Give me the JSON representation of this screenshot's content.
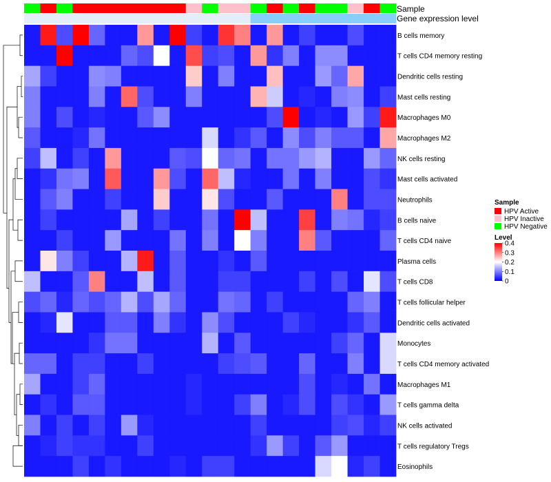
{
  "chart_data": {
    "type": "heatmap",
    "title": "",
    "annotation_tracks": [
      {
        "name": "Sample",
        "values": [
          "HPV Negative",
          "HPV Active",
          "HPV Negative",
          "HPV Active",
          "HPV Active",
          "HPV Active",
          "HPV Active",
          "HPV Active",
          "HPV Active",
          "HPV Active",
          "HPV Inactive",
          "HPV Negative",
          "HPV Inactive",
          "HPV Inactive",
          "HPV Negative",
          "HPV Active",
          "HPV Negative",
          "HPV Active",
          "HPV Negative",
          "HPV Negative",
          "HPV Inactive",
          "HPV Active",
          "HPV Negative"
        ]
      },
      {
        "name": "Gene expression level",
        "values": [
          "low",
          "low",
          "low",
          "low",
          "low",
          "low",
          "low",
          "low",
          "low",
          "low",
          "low",
          "low",
          "low",
          "low",
          "high",
          "high",
          "high",
          "high",
          "high",
          "high",
          "high",
          "high",
          "high"
        ]
      }
    ],
    "rows": [
      "B cells memory",
      "T cells CD4 memory resting",
      "Dendritic cells resting",
      "Mast cells resting",
      "Macrophages M0",
      "Macrophages M2",
      "NK cells resting",
      "Mast cells activated",
      "Neutrophils",
      "B cells naive",
      "T cells CD4 naive",
      "Plasma cells",
      "T cells CD8",
      "T cells follicular helper",
      "Dendritic cells activated",
      "Monocytes",
      "T cells CD4 memory activated",
      "Macrophages M1",
      "T cells gamma delta",
      "NK cells activated",
      "T cells regulatory  Tregs",
      "Eosinophils"
    ],
    "values": [
      [
        0.02,
        0.38,
        0.06,
        0.4,
        0.08,
        0.02,
        0.02,
        0.28,
        0.02,
        0.4,
        0.05,
        0.02,
        0.36,
        0.3,
        0.02,
        0.28,
        0.02,
        0.05,
        0.02,
        0.02,
        0.06,
        0.02,
        0.02
      ],
      [
        0.02,
        0.02,
        0.4,
        0.02,
        0.02,
        0.02,
        0.08,
        0.06,
        0.2,
        0.02,
        0.34,
        0.05,
        0.06,
        0.02,
        0.28,
        0.04,
        0.1,
        0.02,
        0.11,
        0.11,
        0.02,
        0.02,
        0.02
      ],
      [
        0.13,
        0.05,
        0.02,
        0.02,
        0.11,
        0.1,
        0.02,
        0.02,
        0.02,
        0.02,
        0.24,
        0.02,
        0.1,
        0.02,
        0.02,
        0.25,
        0.02,
        0.02,
        0.12,
        0.08,
        0.27,
        0.02,
        0.02
      ],
      [
        0.1,
        0.02,
        0.02,
        0.02,
        0.1,
        0.02,
        0.32,
        0.06,
        0.02,
        0.02,
        0.1,
        0.02,
        0.02,
        0.02,
        0.26,
        0.16,
        0.02,
        0.03,
        0.02,
        0.1,
        0.11,
        0.02,
        0.05
      ],
      [
        0.1,
        0.02,
        0.06,
        0.02,
        0.03,
        0.02,
        0.02,
        0.07,
        0.11,
        0.02,
        0.02,
        0.02,
        0.02,
        0.02,
        0.02,
        0.06,
        0.4,
        0.02,
        0.03,
        0.02,
        0.12,
        0.05,
        0.38
      ],
      [
        0.07,
        0.02,
        0.02,
        0.03,
        0.09,
        0.02,
        0.02,
        0.02,
        0.02,
        0.02,
        0.02,
        0.17,
        0.02,
        0.04,
        0.07,
        0.02,
        0.11,
        0.06,
        0.1,
        0.07,
        0.07,
        0.02,
        0.27
      ],
      [
        0.05,
        0.15,
        0.02,
        0.05,
        0.02,
        0.28,
        0.02,
        0.02,
        0.02,
        0.07,
        0.06,
        0.2,
        0.08,
        0.09,
        0.02,
        0.09,
        0.09,
        0.12,
        0.14,
        0.02,
        0.02,
        0.12,
        0.08
      ],
      [
        0.02,
        0.04,
        0.09,
        0.1,
        0.02,
        0.33,
        0.02,
        0.02,
        0.28,
        0.06,
        0.02,
        0.32,
        0.15,
        0.03,
        0.02,
        0.02,
        0.09,
        0.02,
        0.1,
        0.02,
        0.02,
        0.06,
        0.04
      ],
      [
        0.02,
        0.07,
        0.1,
        0.02,
        0.02,
        0.05,
        0.02,
        0.02,
        0.24,
        0.02,
        0.02,
        0.22,
        0.06,
        0.02,
        0.02,
        0.07,
        0.02,
        0.02,
        0.02,
        0.3,
        0.02,
        0.06,
        0.06
      ],
      [
        0.02,
        0.05,
        0.02,
        0.02,
        0.02,
        0.02,
        0.13,
        0.02,
        0.05,
        0.02,
        0.02,
        0.09,
        0.02,
        0.4,
        0.15,
        0.02,
        0.02,
        0.35,
        0.02,
        0.1,
        0.09,
        0.03,
        0.05
      ],
      [
        0.02,
        0.02,
        0.05,
        0.02,
        0.02,
        0.12,
        0.02,
        0.02,
        0.02,
        0.09,
        0.02,
        0.1,
        0.02,
        0.2,
        0.1,
        0.02,
        0.02,
        0.3,
        0.07,
        0.02,
        0.02,
        0.02,
        0.08
      ],
      [
        0.02,
        0.22,
        0.1,
        0.05,
        0.02,
        0.02,
        0.14,
        0.38,
        0.02,
        0.07,
        0.02,
        0.02,
        0.04,
        0.02,
        0.07,
        0.02,
        0.02,
        0.02,
        0.02,
        0.02,
        0.02,
        0.02,
        0.02
      ],
      [
        0.15,
        0.02,
        0.02,
        0.07,
        0.3,
        0.02,
        0.02,
        0.15,
        0.02,
        0.07,
        0.02,
        0.02,
        0.05,
        0.05,
        0.02,
        0.02,
        0.02,
        0.05,
        0.02,
        0.06,
        0.02,
        0.18,
        0.06
      ],
      [
        0.06,
        0.08,
        0.03,
        0.08,
        0.06,
        0.08,
        0.14,
        0.06,
        0.13,
        0.08,
        0.02,
        0.02,
        0.09,
        0.08,
        0.02,
        0.05,
        0.02,
        0.02,
        0.02,
        0.02,
        0.08,
        0.1,
        0.02
      ],
      [
        0.02,
        0.03,
        0.18,
        0.02,
        0.02,
        0.07,
        0.07,
        0.02,
        0.1,
        0.04,
        0.02,
        0.11,
        0.06,
        0.02,
        0.02,
        0.02,
        0.05,
        0.03,
        0.02,
        0.02,
        0.04,
        0.07,
        0.02
      ],
      [
        0.02,
        0.02,
        0.02,
        0.02,
        0.04,
        0.09,
        0.09,
        0.02,
        0.02,
        0.02,
        0.02,
        0.14,
        0.02,
        0.07,
        0.02,
        0.02,
        0.02,
        0.02,
        0.02,
        0.05,
        0.08,
        0.02,
        0.17
      ],
      [
        0.08,
        0.08,
        0.02,
        0.05,
        0.05,
        0.02,
        0.02,
        0.05,
        0.02,
        0.02,
        0.02,
        0.02,
        0.05,
        0.06,
        0.07,
        0.02,
        0.02,
        0.08,
        0.02,
        0.02,
        0.1,
        0.02,
        0.17
      ],
      [
        0.13,
        0.02,
        0.02,
        0.05,
        0.08,
        0.02,
        0.02,
        0.02,
        0.02,
        0.02,
        0.03,
        0.02,
        0.02,
        0.02,
        0.02,
        0.02,
        0.02,
        0.06,
        0.02,
        0.03,
        0.02,
        0.09,
        0.02
      ],
      [
        0.02,
        0.04,
        0.02,
        0.07,
        0.07,
        0.02,
        0.02,
        0.02,
        0.02,
        0.02,
        0.03,
        0.02,
        0.02,
        0.05,
        0.1,
        0.02,
        0.03,
        0.06,
        0.02,
        0.06,
        0.04,
        0.02,
        0.12
      ],
      [
        0.1,
        0.02,
        0.05,
        0.02,
        0.05,
        0.02,
        0.12,
        0.03,
        0.02,
        0.02,
        0.02,
        0.02,
        0.02,
        0.02,
        0.05,
        0.02,
        0.02,
        0.02,
        0.02,
        0.05,
        0.06,
        0.03,
        0.05
      ],
      [
        0.02,
        0.03,
        0.05,
        0.04,
        0.04,
        0.02,
        0.02,
        0.05,
        0.02,
        0.02,
        0.02,
        0.02,
        0.02,
        0.02,
        0.04,
        0.12,
        0.05,
        0.02,
        0.07,
        0.12,
        0.02,
        0.02,
        0.02
      ],
      [
        0.02,
        0.02,
        0.02,
        0.05,
        0.02,
        0.04,
        0.02,
        0.02,
        0.02,
        0.03,
        0.02,
        0.05,
        0.05,
        0.02,
        0.02,
        0.02,
        0.02,
        0.02,
        0.17,
        0.2,
        0.03,
        0.05,
        0.02
      ]
    ],
    "color_scale": {
      "min": 0,
      "max": 0.4,
      "low": "#0000ff",
      "mid": "#ffffff",
      "high": "#ff0000",
      "midpoint": 0.2
    },
    "legend": {
      "sample_title": "Sample",
      "sample_entries": [
        {
          "label": "HPV Active",
          "color": "#ff0000"
        },
        {
          "label": "HPV Inactive",
          "color": "#ffc0cb"
        },
        {
          "label": "HPV Negative",
          "color": "#00ff00"
        }
      ],
      "level_title": "Level",
      "level_ticks": [
        "0.4",
        "0.3",
        "0.2",
        "0.1",
        "0"
      ],
      "level_tick_values": [
        0.4,
        0.3,
        0.2,
        0.1,
        0
      ],
      "placement": "right"
    },
    "expression_colors": {
      "low": "#e3eef9",
      "high": "#87cefa"
    },
    "dendrogram": "rows",
    "xlabel": "",
    "ylabel": ""
  }
}
